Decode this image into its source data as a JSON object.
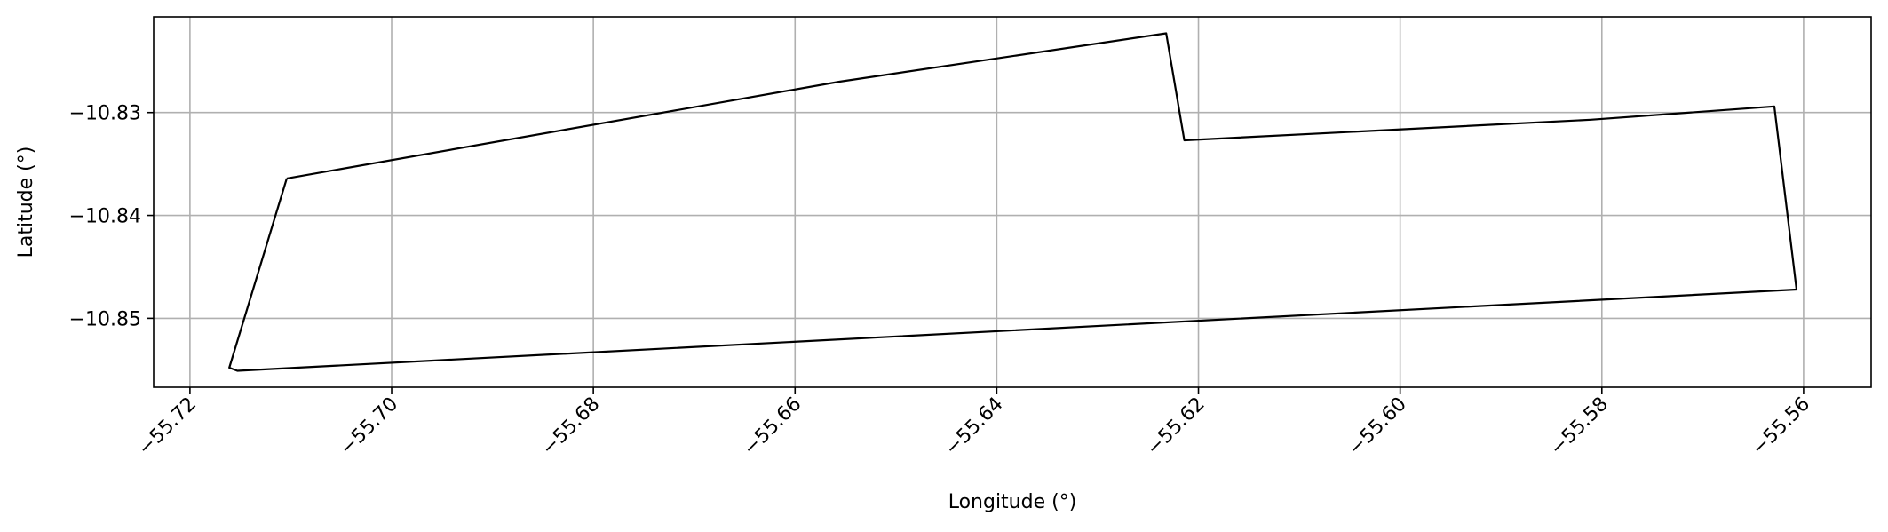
{
  "chart_data": {
    "type": "line",
    "title": "",
    "xlabel": "Longitude (°)",
    "ylabel": "Latitude (°)",
    "xlim": [
      -55.7236,
      -55.5533
    ],
    "ylim": [
      -10.8567,
      -10.8207
    ],
    "xticks": [
      -55.72,
      -55.7,
      -55.68,
      -55.66,
      -55.64,
      -55.62,
      -55.6,
      -55.58,
      -55.56
    ],
    "xtick_labels": [
      "−55.72",
      "−55.70",
      "−55.68",
      "−55.66",
      "−55.64",
      "−55.62",
      "−55.60",
      "−55.58",
      "−55.56"
    ],
    "yticks": [
      -10.83,
      -10.84,
      -10.85
    ],
    "ytick_labels": [
      "−10.83",
      "−10.84",
      "−10.85"
    ],
    "grid": true,
    "line_color": "#000000",
    "grid_color": "#b0b0b0",
    "series": [
      {
        "x": [
          -55.7104,
          -55.6556,
          -55.6232,
          -55.6214,
          -55.5811,
          -55.5629,
          -55.5607,
          -55.7153,
          -55.7161,
          -55.7104
        ],
        "y": [
          -10.8364,
          -10.827,
          -10.8223,
          -10.8327,
          -10.8307,
          -10.8294,
          -10.8472,
          -10.8551,
          -10.8548,
          -10.8364
        ]
      }
    ]
  }
}
